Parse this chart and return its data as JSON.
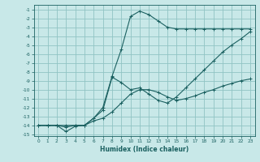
{
  "xlabel": "Humidex (Indice chaleur)",
  "background_color": "#c8e8e8",
  "grid_color": "#90c4c4",
  "line_color": "#1a6060",
  "xlim": [
    -0.5,
    23.5
  ],
  "ylim": [
    -15.2,
    -0.5
  ],
  "x_ticks": [
    0,
    1,
    2,
    3,
    4,
    5,
    6,
    7,
    8,
    9,
    10,
    11,
    12,
    13,
    14,
    15,
    16,
    17,
    18,
    19,
    20,
    21,
    22,
    23
  ],
  "y_ticks": [
    -1,
    -2,
    -3,
    -4,
    -5,
    -6,
    -7,
    -8,
    -9,
    -10,
    -11,
    -12,
    -13,
    -14,
    -15
  ],
  "series1_x": [
    0,
    1,
    2,
    3,
    4,
    5,
    6,
    7,
    8,
    9,
    10,
    11,
    12,
    13,
    14,
    15,
    16,
    17,
    18,
    19,
    20,
    21,
    22,
    23
  ],
  "series1_y": [
    -14.0,
    -14.0,
    -14.0,
    -14.7,
    -14.1,
    -14.0,
    -13.5,
    -13.2,
    -12.5,
    -11.5,
    -10.5,
    -10.0,
    -10.0,
    -10.3,
    -10.8,
    -11.2,
    -11.0,
    -10.7,
    -10.3,
    -10.0,
    -9.6,
    -9.3,
    -9.0,
    -8.8
  ],
  "series2_x": [
    0,
    1,
    2,
    3,
    4,
    5,
    6,
    7,
    8,
    9,
    10,
    11,
    12,
    13,
    14,
    15,
    16,
    17,
    18,
    19,
    20,
    21,
    22,
    23
  ],
  "series2_y": [
    -14.0,
    -14.0,
    -14.0,
    -14.2,
    -14.0,
    -14.0,
    -13.2,
    -12.3,
    -8.6,
    -9.2,
    -10.0,
    -9.8,
    -10.5,
    -11.2,
    -11.5,
    -10.8,
    -9.8,
    -8.8,
    -7.8,
    -6.8,
    -5.8,
    -5.0,
    -4.3,
    -3.5
  ],
  "series3_x": [
    0,
    1,
    2,
    3,
    4,
    5,
    6,
    7,
    8,
    9,
    10,
    11,
    12,
    13,
    14,
    15,
    16,
    17,
    18,
    19,
    20,
    21,
    22,
    23
  ],
  "series3_y": [
    -14.0,
    -14.0,
    -14.0,
    -14.0,
    -14.0,
    -14.0,
    -13.2,
    -12.0,
    -8.5,
    -5.5,
    -1.8,
    -1.2,
    -1.6,
    -2.3,
    -3.0,
    -3.2,
    -3.2,
    -3.2,
    -3.2,
    -3.2,
    -3.2,
    -3.2,
    -3.2,
    -3.2
  ]
}
